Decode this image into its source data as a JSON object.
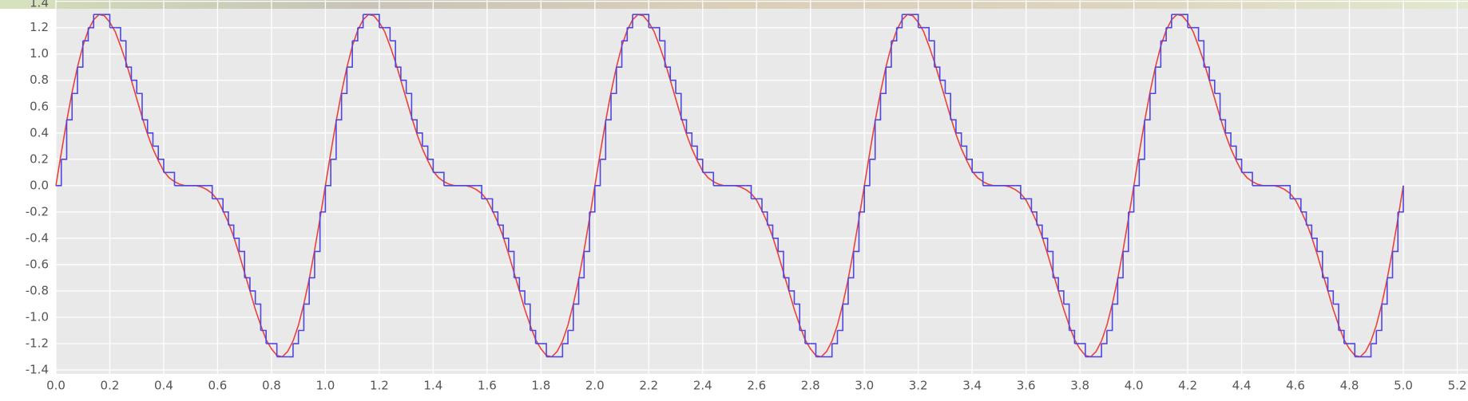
{
  "chart_data": {
    "type": "line",
    "x": [
      0,
      0.02,
      0.04,
      0.06,
      0.08,
      0.1,
      0.12,
      0.14,
      0.16,
      0.18,
      0.2,
      0.22,
      0.24,
      0.26,
      0.28,
      0.3,
      0.32,
      0.34,
      0.36,
      0.38,
      0.4,
      0.42,
      0.44,
      0.46,
      0.48,
      0.5,
      0.52,
      0.54,
      0.56,
      0.58,
      0.6,
      0.62,
      0.64,
      0.66,
      0.68,
      0.7,
      0.72,
      0.74,
      0.76,
      0.78,
      0.8,
      0.82,
      0.84,
      0.86,
      0.88,
      0.9,
      0.92,
      0.94,
      0.96,
      0.98,
      1,
      1.02,
      1.04,
      1.06,
      1.08,
      1.1,
      1.12,
      1.14,
      1.16,
      1.18,
      1.2,
      1.22,
      1.24,
      1.26,
      1.28,
      1.3,
      1.32,
      1.34,
      1.36,
      1.38,
      1.4,
      1.42,
      1.44,
      1.46,
      1.48,
      1.5,
      1.52,
      1.54,
      1.56,
      1.58,
      1.6,
      1.62,
      1.64,
      1.66,
      1.68,
      1.7,
      1.72,
      1.74,
      1.76,
      1.78,
      1.8,
      1.82,
      1.84,
      1.86,
      1.88,
      1.9,
      1.92,
      1.94,
      1.96,
      1.98,
      2,
      2.02,
      2.04,
      2.06,
      2.08,
      2.1,
      2.12,
      2.14,
      2.16,
      2.18,
      2.2,
      2.22,
      2.24,
      2.26,
      2.28,
      2.3,
      2.32,
      2.34,
      2.36,
      2.38,
      2.4,
      2.42,
      2.44,
      2.46,
      2.48,
      2.5,
      2.52,
      2.54,
      2.56,
      2.58,
      2.6,
      2.62,
      2.64,
      2.66,
      2.68,
      2.7,
      2.72,
      2.74,
      2.76,
      2.78,
      2.8,
      2.82,
      2.84,
      2.86,
      2.88,
      2.9,
      2.92,
      2.94,
      2.96,
      2.98,
      3,
      3.02,
      3.04,
      3.06,
      3.08,
      3.1,
      3.12,
      3.14,
      3.16,
      3.18,
      3.2,
      3.22,
      3.24,
      3.26,
      3.28,
      3.3,
      3.32,
      3.34,
      3.36,
      3.38,
      3.4,
      3.42,
      3.44,
      3.46,
      3.48,
      3.5,
      3.52,
      3.54,
      3.56,
      3.58,
      3.6,
      3.62,
      3.64,
      3.66,
      3.68,
      3.7,
      3.72,
      3.74,
      3.76,
      3.78,
      3.8,
      3.82,
      3.84,
      3.86,
      3.88,
      3.9,
      3.92,
      3.94,
      3.96,
      3.98,
      4,
      4.02,
      4.04,
      4.06,
      4.08,
      4.1,
      4.12,
      4.14,
      4.16,
      4.18,
      4.2,
      4.22,
      4.24,
      4.26,
      4.28,
      4.3,
      4.32,
      4.34,
      4.36,
      4.38,
      4.4,
      4.42,
      4.44,
      4.46,
      4.48,
      4.5,
      4.52,
      4.54,
      4.56,
      4.58,
      4.6,
      4.62,
      4.64,
      4.66,
      4.68,
      4.7,
      4.72,
      4.74,
      4.76,
      4.78,
      4.8,
      4.82,
      4.84,
      4.86,
      4.88,
      4.9,
      4.92,
      4.94,
      4.96,
      4.98,
      5
    ],
    "series": [
      {
        "color": "#e8433a",
        "drawstyle": "line",
        "values": [
          0,
          0.25,
          0.49,
          0.71,
          0.9,
          1.06,
          1.18,
          1.26,
          1.3,
          1.29,
          1.24,
          1.17,
          1.06,
          0.94,
          0.8,
          0.66,
          0.52,
          0.39,
          0.28,
          0.19,
          0.11,
          0.06,
          0.03,
          0.01,
          0,
          0,
          0,
          -0.01,
          -0.03,
          -0.06,
          -0.11,
          -0.19,
          -0.28,
          -0.39,
          -0.52,
          -0.66,
          -0.8,
          -0.94,
          -1.06,
          -1.17,
          -1.24,
          -1.29,
          -1.3,
          -1.26,
          -1.18,
          -1.06,
          -0.9,
          -0.71,
          -0.49,
          -0.25,
          0,
          0.25,
          0.49,
          0.71,
          0.9,
          1.06,
          1.18,
          1.26,
          1.3,
          1.29,
          1.24,
          1.17,
          1.06,
          0.94,
          0.8,
          0.66,
          0.52,
          0.39,
          0.28,
          0.19,
          0.11,
          0.06,
          0.03,
          0.01,
          0,
          0,
          0,
          -0.01,
          -0.03,
          -0.06,
          -0.11,
          -0.19,
          -0.28,
          -0.39,
          -0.52,
          -0.66,
          -0.8,
          -0.94,
          -1.06,
          -1.17,
          -1.24,
          -1.29,
          -1.3,
          -1.26,
          -1.18,
          -1.06,
          -0.9,
          -0.71,
          -0.49,
          -0.25,
          0,
          0.25,
          0.49,
          0.71,
          0.9,
          1.06,
          1.18,
          1.26,
          1.3,
          1.29,
          1.24,
          1.17,
          1.06,
          0.94,
          0.8,
          0.66,
          0.52,
          0.39,
          0.28,
          0.19,
          0.11,
          0.06,
          0.03,
          0.01,
          0,
          0,
          0,
          -0.01,
          -0.03,
          -0.06,
          -0.11,
          -0.19,
          -0.28,
          -0.39,
          -0.52,
          -0.66,
          -0.8,
          -0.94,
          -1.06,
          -1.17,
          -1.24,
          -1.29,
          -1.3,
          -1.26,
          -1.18,
          -1.06,
          -0.9,
          -0.71,
          -0.49,
          -0.25,
          0,
          0.25,
          0.49,
          0.71,
          0.9,
          1.06,
          1.18,
          1.26,
          1.3,
          1.29,
          1.24,
          1.17,
          1.06,
          0.94,
          0.8,
          0.66,
          0.52,
          0.39,
          0.28,
          0.19,
          0.11,
          0.06,
          0.03,
          0.01,
          0,
          0,
          0,
          -0.01,
          -0.03,
          -0.06,
          -0.11,
          -0.19,
          -0.28,
          -0.39,
          -0.52,
          -0.66,
          -0.8,
          -0.94,
          -1.06,
          -1.17,
          -1.24,
          -1.29,
          -1.3,
          -1.26,
          -1.18,
          -1.06,
          -0.9,
          -0.71,
          -0.49,
          -0.25,
          0,
          0.25,
          0.49,
          0.71,
          0.9,
          1.06,
          1.18,
          1.26,
          1.3,
          1.29,
          1.24,
          1.17,
          1.06,
          0.94,
          0.8,
          0.66,
          0.52,
          0.39,
          0.28,
          0.19,
          0.11,
          0.06,
          0.03,
          0.01,
          0,
          0,
          0,
          -0.01,
          -0.03,
          -0.06,
          -0.11,
          -0.19,
          -0.28,
          -0.39,
          -0.52,
          -0.66,
          -0.8,
          -0.94,
          -1.06,
          -1.17,
          -1.24,
          -1.29,
          -1.3,
          -1.26,
          -1.18,
          -1.06,
          -0.9,
          -0.71,
          -0.49,
          -0.25,
          0
        ]
      },
      {
        "color": "#5046e0",
        "drawstyle": "steps-post",
        "values": [
          0,
          0.2,
          0.5,
          0.7,
          0.9,
          1.1,
          1.2,
          1.3,
          1.3,
          1.3,
          1.2,
          1.2,
          1.1,
          0.9,
          0.8,
          0.7,
          0.5,
          0.4,
          0.3,
          0.2,
          0.1,
          0.1,
          0,
          0,
          0,
          0,
          0,
          0,
          0,
          -0.1,
          -0.1,
          -0.2,
          -0.3,
          -0.4,
          -0.5,
          -0.7,
          -0.8,
          -0.9,
          -1.1,
          -1.2,
          -1.2,
          -1.3,
          -1.3,
          -1.3,
          -1.2,
          -1.1,
          -0.9,
          -0.7,
          -0.5,
          -0.2,
          0,
          0.2,
          0.5,
          0.7,
          0.9,
          1.1,
          1.2,
          1.3,
          1.3,
          1.3,
          1.2,
          1.2,
          1.1,
          0.9,
          0.8,
          0.7,
          0.5,
          0.4,
          0.3,
          0.2,
          0.1,
          0.1,
          0,
          0,
          0,
          0,
          0,
          0,
          0,
          -0.1,
          -0.1,
          -0.2,
          -0.3,
          -0.4,
          -0.5,
          -0.7,
          -0.8,
          -0.9,
          -1.1,
          -1.2,
          -1.2,
          -1.3,
          -1.3,
          -1.3,
          -1.2,
          -1.1,
          -0.9,
          -0.7,
          -0.5,
          -0.2,
          0,
          0.2,
          0.5,
          0.7,
          0.9,
          1.1,
          1.2,
          1.3,
          1.3,
          1.3,
          1.2,
          1.2,
          1.1,
          0.9,
          0.8,
          0.7,
          0.5,
          0.4,
          0.3,
          0.2,
          0.1,
          0.1,
          0,
          0,
          0,
          0,
          0,
          0,
          0,
          -0.1,
          -0.1,
          -0.2,
          -0.3,
          -0.4,
          -0.5,
          -0.7,
          -0.8,
          -0.9,
          -1.1,
          -1.2,
          -1.2,
          -1.3,
          -1.3,
          -1.3,
          -1.2,
          -1.1,
          -0.9,
          -0.7,
          -0.5,
          -0.2,
          0,
          0.2,
          0.5,
          0.7,
          0.9,
          1.1,
          1.2,
          1.3,
          1.3,
          1.3,
          1.2,
          1.2,
          1.1,
          0.9,
          0.8,
          0.7,
          0.5,
          0.4,
          0.3,
          0.2,
          0.1,
          0.1,
          0,
          0,
          0,
          0,
          0,
          0,
          0,
          -0.1,
          -0.1,
          -0.2,
          -0.3,
          -0.4,
          -0.5,
          -0.7,
          -0.8,
          -0.9,
          -1.1,
          -1.2,
          -1.2,
          -1.3,
          -1.3,
          -1.3,
          -1.2,
          -1.1,
          -0.9,
          -0.7,
          -0.5,
          -0.2,
          0,
          0.2,
          0.5,
          0.7,
          0.9,
          1.1,
          1.2,
          1.3,
          1.3,
          1.3,
          1.2,
          1.2,
          1.1,
          0.9,
          0.8,
          0.7,
          0.5,
          0.4,
          0.3,
          0.2,
          0.1,
          0.1,
          0,
          0,
          0,
          0,
          0,
          0,
          0,
          -0.1,
          -0.1,
          -0.2,
          -0.3,
          -0.4,
          -0.5,
          -0.7,
          -0.8,
          -0.9,
          -1.1,
          -1.2,
          -1.2,
          -1.3,
          -1.3,
          -1.3,
          -1.2,
          -1.1,
          -0.9,
          -0.7,
          -0.5,
          -0.2,
          0
        ]
      }
    ],
    "xlim": [
      0,
      5.24
    ],
    "ylim": [
      -1.43,
      1.41
    ],
    "xticks": [
      {
        "value": 0,
        "label": "0.0"
      },
      0.2,
      0.4,
      0.6,
      0.8,
      {
        "value": 1,
        "label": "1.0"
      },
      1.2,
      1.4,
      1.6,
      1.8,
      {
        "value": 2,
        "label": "2.0"
      },
      2.2,
      2.4,
      2.6,
      2.8,
      {
        "value": 3,
        "label": "3.0"
      },
      3.2,
      3.4,
      3.6,
      3.8,
      {
        "value": 4,
        "label": "4.0"
      },
      4.2,
      4.4,
      4.6,
      4.8,
      {
        "value": 5,
        "label": "5.0"
      },
      5.2
    ],
    "yticks": [
      -1.4,
      -1.2,
      {
        "value": -1,
        "label": "-1.0"
      },
      -0.8,
      -0.6,
      -0.4,
      -0.2,
      {
        "value": 0,
        "label": "0.0"
      },
      0.2,
      0.4,
      0.6,
      0.8,
      {
        "value": 1,
        "label": "1.0"
      },
      1.2,
      1.4
    ],
    "grid": true
  }
}
